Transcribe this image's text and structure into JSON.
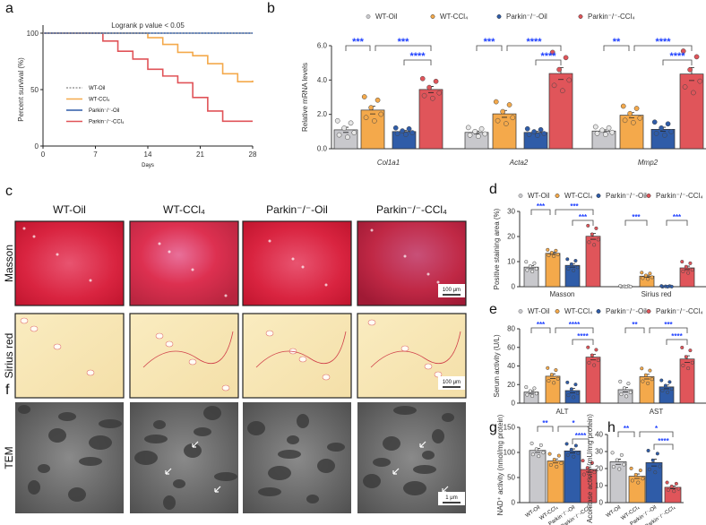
{
  "panel_labels": [
    "a",
    "b",
    "c",
    "d",
    "e",
    "f",
    "g",
    "h"
  ],
  "groups": [
    "WT-Oil",
    "WT-CCl₄",
    "Parkin⁻/⁻-Oil",
    "Parkin⁻/⁻-CCl₄"
  ],
  "colors": {
    "WT-Oil": "#c8c8cc",
    "WT-CCl4": "#f4a94b",
    "Parkin-Oil": "#2f5ca8",
    "Parkin-CCl4": "#e0555a",
    "sig": "#1d3fff"
  },
  "images": {
    "column_headers": [
      "WT-Oil",
      "WT-CCl₄",
      "Parkin⁻/⁻-Oil",
      "Parkin⁻/⁻-CCl₄"
    ],
    "row_labels": [
      "Masson",
      "Sirius red",
      "TEM"
    ],
    "scale_bars": [
      "100 μm",
      "100 μm",
      "1 μm"
    ]
  },
  "chart_data": [
    {
      "id": "a",
      "type": "line",
      "title": "Logrank p value < 0.05",
      "xlabel": "Days",
      "ylabel": "Percent survival (%)",
      "xlim": [
        0,
        28
      ],
      "ylim": [
        0,
        100
      ],
      "xticks": [
        "0",
        "7",
        "14",
        "21",
        "28"
      ],
      "yticks": [
        "0",
        "50",
        "100"
      ],
      "legend": [
        "WT-Oil",
        "WT-CCl₄",
        "Parkin⁻/⁻-Oil",
        "Parkin⁻/⁻-CCl₄"
      ],
      "series": [
        {
          "name": "WT-Oil",
          "x": [
            0,
            28
          ],
          "y": [
            100,
            100
          ]
        },
        {
          "name": "WT-CCl4",
          "x": [
            0,
            14,
            16,
            18,
            20,
            22,
            24,
            26,
            28
          ],
          "y": [
            100,
            96,
            90,
            83,
            80,
            73,
            64,
            57,
            58
          ]
        },
        {
          "name": "Parkin-Oil",
          "x": [
            0,
            28
          ],
          "y": [
            100,
            100
          ]
        },
        {
          "name": "Parkin-CCl4",
          "x": [
            0,
            8,
            10,
            12,
            14,
            16,
            18,
            20,
            22,
            24,
            28
          ],
          "y": [
            100,
            93,
            84,
            77,
            68,
            62,
            56,
            43,
            31,
            22,
            22
          ]
        }
      ]
    },
    {
      "id": "b",
      "type": "bar",
      "ylabel": "Relative mRNA levels",
      "ylim": [
        0,
        6
      ],
      "yticks": [
        "0.0",
        "2.0",
        "4.0",
        "6.0"
      ],
      "categories": [
        "Col1a1",
        "Acta2",
        "Mmp2"
      ],
      "values": [
        [
          1.1,
          2.25,
          1.0,
          3.45
        ],
        [
          0.95,
          2.03,
          0.95,
          4.38
        ],
        [
          1.03,
          1.95,
          1.13,
          4.35
        ]
      ],
      "sem": [
        [
          0.15,
          0.22,
          0.06,
          0.18
        ],
        [
          0.08,
          0.2,
          0.06,
          0.35
        ],
        [
          0.07,
          0.15,
          0.12,
          0.38
        ]
      ],
      "sig": [
        [
          {
            "a": 0,
            "b": 1,
            "label": "***",
            "lv": 0
          },
          {
            "a": 1,
            "b": 3,
            "label": "***",
            "lv": 0
          },
          {
            "a": 2,
            "b": 3,
            "label": "****",
            "lv": 1
          }
        ],
        [
          {
            "a": 0,
            "b": 1,
            "label": "***",
            "lv": 0
          },
          {
            "a": 1,
            "b": 3,
            "label": "****",
            "lv": 0
          },
          {
            "a": 2,
            "b": 3,
            "label": "****",
            "lv": 1
          }
        ],
        [
          {
            "a": 0,
            "b": 1,
            "label": "**",
            "lv": 0
          },
          {
            "a": 1,
            "b": 3,
            "label": "****",
            "lv": 0
          },
          {
            "a": 2,
            "b": 3,
            "label": "****",
            "lv": 1
          }
        ]
      ]
    },
    {
      "id": "d",
      "type": "bar",
      "ylabel": "Positive staining area (%)",
      "ylim": [
        0,
        30
      ],
      "yticks": [
        "0",
        "10",
        "20",
        "30"
      ],
      "categories": [
        "Masson",
        "Sirius red"
      ],
      "values": [
        [
          7.8,
          13.3,
          8.5,
          20.1
        ],
        [
          0.1,
          4.2,
          0.1,
          7.5
        ]
      ],
      "sem": [
        [
          0.6,
          0.4,
          0.7,
          1.2
        ],
        [
          0.05,
          0.4,
          0.05,
          0.7
        ]
      ],
      "sig": [
        [
          {
            "a": 0,
            "b": 1,
            "label": "***",
            "lv": 0
          },
          {
            "a": 1,
            "b": 3,
            "label": "***",
            "lv": 0
          },
          {
            "a": 2,
            "b": 3,
            "label": "***",
            "lv": 1
          }
        ],
        [
          {
            "a": 0,
            "b": 1,
            "label": "***",
            "lv": 1
          },
          {
            "a": 2,
            "b": 3,
            "label": "***",
            "lv": 1
          }
        ]
      ]
    },
    {
      "id": "e",
      "type": "bar",
      "ylabel": "Serum activity (U/L)",
      "ylim": [
        0,
        80
      ],
      "yticks": [
        "0",
        "20",
        "40",
        "60",
        "80"
      ],
      "categories": [
        "ALT",
        "AST"
      ],
      "values": [
        [
          12,
          29,
          13.5,
          49.5
        ],
        [
          14.5,
          28.5,
          17.5,
          47.5
        ]
      ],
      "sem": [
        [
          1.5,
          2.5,
          2.5,
          3
        ],
        [
          2.5,
          2.5,
          2,
          3.5
        ]
      ],
      "sig": [
        [
          {
            "a": 0,
            "b": 1,
            "label": "***",
            "lv": 0
          },
          {
            "a": 1,
            "b": 3,
            "label": "****",
            "lv": 0
          },
          {
            "a": 2,
            "b": 3,
            "label": "****",
            "lv": 1
          }
        ],
        [
          {
            "a": 0,
            "b": 1,
            "label": "**",
            "lv": 0
          },
          {
            "a": 1,
            "b": 3,
            "label": "***",
            "lv": 0
          },
          {
            "a": 2,
            "b": 3,
            "label": "****",
            "lv": 1
          }
        ]
      ]
    },
    {
      "id": "g",
      "type": "bar",
      "ylabel": "NAD⁺ activity (nmol/mg protein)",
      "ylim": [
        0,
        150
      ],
      "yticks": [
        "0",
        "50",
        "100",
        "150"
      ],
      "categories": [
        "WT-Oil",
        "WT-CCl₄",
        "Parkin⁻/⁻-Oil",
        "Parkin⁻/⁻-CCl₄"
      ],
      "values": [
        [
          104,
          83,
          103,
          66
        ]
      ],
      "sem": [
        [
          4,
          4,
          4,
          5
        ]
      ],
      "sig": [
        [
          {
            "a": 0,
            "b": 1,
            "label": "**",
            "lv": 0
          },
          {
            "a": 1,
            "b": 3,
            "label": "*",
            "lv": 0
          },
          {
            "a": 2,
            "b": 3,
            "label": "****",
            "lv": 1
          }
        ]
      ]
    },
    {
      "id": "h",
      "type": "bar",
      "ylabel": "Aconitase activity (mU/mg protein)",
      "ylim": [
        0,
        40
      ],
      "yticks": [
        "0",
        "10",
        "20",
        "30",
        "40"
      ],
      "categories": [
        "WT-Oil",
        "WT-CCl₄",
        "Parkin⁻/⁻-Oil",
        "Parkin⁻/⁻-CCl₄"
      ],
      "values": [
        [
          24,
          15.5,
          23.5,
          9
        ]
      ],
      "sem": [
        [
          1.5,
          1.3,
          2,
          0.8
        ]
      ],
      "sig": [
        [
          {
            "a": 0,
            "b": 1,
            "label": "**",
            "lv": 0
          },
          {
            "a": 1,
            "b": 3,
            "label": "*",
            "lv": 0
          },
          {
            "a": 2,
            "b": 3,
            "label": "****",
            "lv": 1
          }
        ]
      ]
    }
  ]
}
